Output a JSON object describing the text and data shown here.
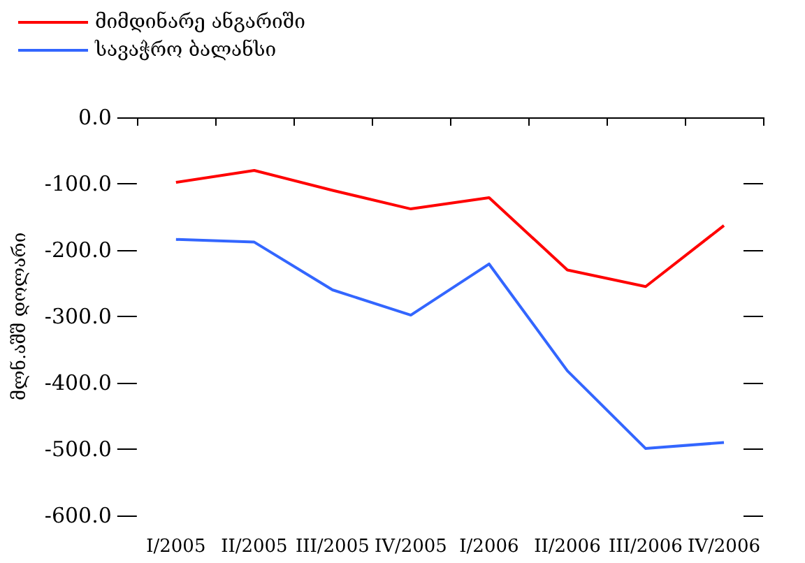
{
  "chart_data": {
    "type": "line",
    "ylabel": "მლნ.აშშ დოლარი",
    "categories": [
      "I/2005",
      "II/2005",
      "III/2005",
      "IV/2005",
      "I/2006",
      "II/2006",
      "III/2006",
      "IV/2006"
    ],
    "series": [
      {
        "name": "მიმდინარე ანგარიში",
        "color": "#ff0000",
        "values": [
          -98,
          -80,
          -110,
          -138,
          -121,
          -230,
          -255,
          -163
        ]
      },
      {
        "name": "სავაჭრო ბალანსი",
        "color": "#3366ff",
        "values": [
          -184,
          -188,
          -260,
          -298,
          -221,
          -382,
          -499,
          -490
        ]
      }
    ],
    "ylim": [
      -600,
      0
    ],
    "yticks": [
      {
        "value": 0,
        "label": "0.0"
      },
      {
        "value": -100,
        "label": "-100.0"
      },
      {
        "value": -200,
        "label": "-200.0"
      },
      {
        "value": -300,
        "label": "-300.0"
      },
      {
        "value": -400,
        "label": "-400.0"
      },
      {
        "value": -500,
        "label": "-500.0"
      },
      {
        "value": -600,
        "label": "-600.0"
      }
    ],
    "grid": false,
    "legend": "top left",
    "marker": "none",
    "line_style": "solid"
  }
}
